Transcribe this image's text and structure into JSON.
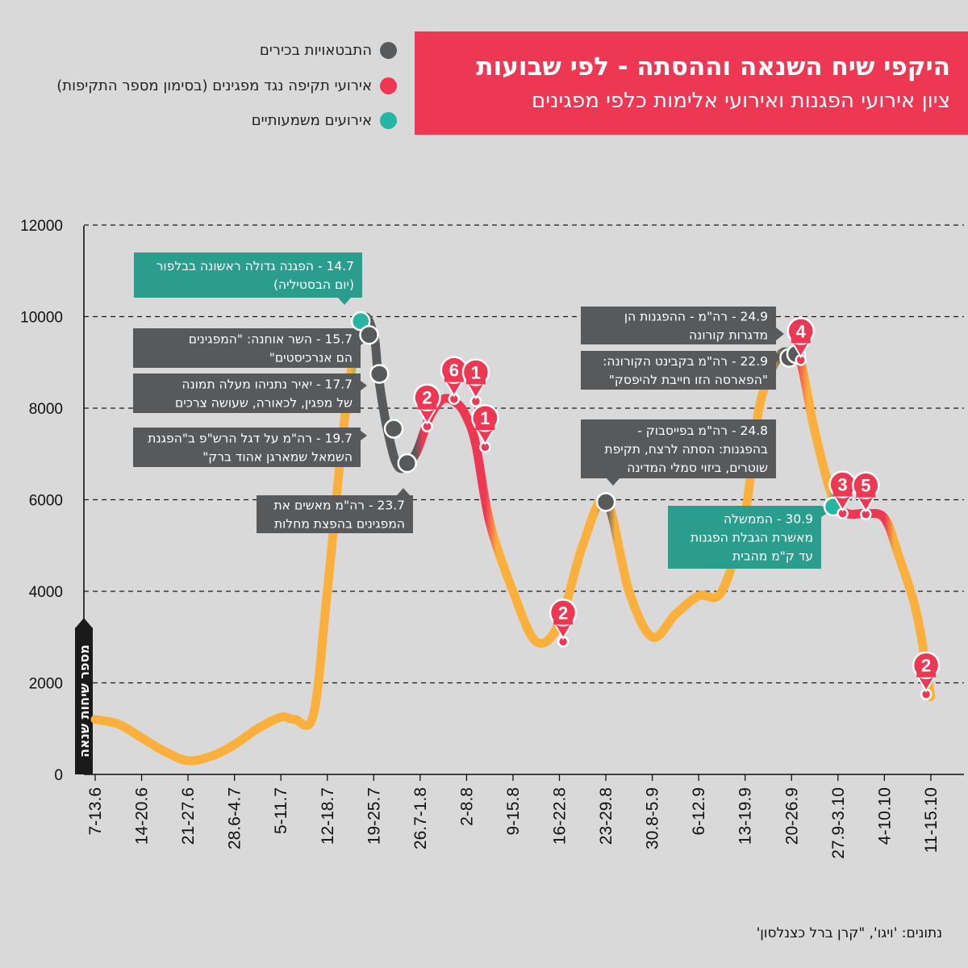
{
  "title": "היקפי שיח השנאה וההסתה - לפי שבועות",
  "subtitle": "ציון אירועי הפגנות ואירועי אלימות כלפי מפגינים",
  "legend": [
    {
      "label": "התבטאויות בכירים",
      "color": "#58595b"
    },
    {
      "label": "אירועי תקיפה נגד מפגינים (בסימון מספר התקיפות)",
      "color": "#ee3753"
    },
    {
      "label": "אירועים משמעותיים",
      "color": "#26b5a3"
    }
  ],
  "source": "נתונים: 'ויגו', \"קרן ברל כצנלסון'",
  "chart_data": {
    "type": "line",
    "ylabel": "מספר שיחות שנאה",
    "ylim": [
      0,
      12000
    ],
    "yticks": [
      "0",
      "2000",
      "4000",
      "6000",
      "8000",
      "10000",
      "12000"
    ],
    "categories": [
      "7-13.6",
      "14-20.6",
      "21-27.6",
      "28.6-4.7",
      "5-11.7",
      "12-18.7",
      "19-25.7",
      "26.7-1.8",
      "2-8.8",
      "9-15.8",
      "16-22.8",
      "23-29.8",
      "30.8-5.9",
      "6-12.9",
      "13-19.9",
      "20-26.9",
      "27.9-3.10",
      "4-10.10",
      "11-15.10"
    ],
    "series": [
      {
        "x": [
          0,
          0.5,
          1,
          1.5,
          2,
          2.5,
          3,
          3.5,
          4,
          4.3,
          4.7,
          5,
          5.4,
          5.75,
          6,
          6.1,
          6.3,
          6.55,
          6.9,
          7.2,
          7.5,
          7.8,
          8,
          8.2,
          8.5,
          9,
          9.5,
          10,
          10.5,
          11,
          11.5,
          12,
          12.5,
          13,
          13.5,
          14,
          14.3,
          14.7,
          15,
          15.2,
          15.5,
          15.9,
          16.2,
          16.6,
          17,
          17.3,
          17.7,
          18
        ],
        "y": [
          1200,
          1100,
          800,
          500,
          300,
          400,
          650,
          1000,
          1250,
          1200,
          1300,
          4000,
          8000,
          9900,
          9600,
          8700,
          7500,
          6700,
          7000,
          7800,
          8200,
          8100,
          7800,
          7200,
          5500,
          4000,
          2900,
          3300,
          5000,
          6000,
          4000,
          3000,
          3500,
          3900,
          4000,
          5700,
          8000,
          9100,
          9200,
          9000,
          7500,
          6000,
          5700,
          5700,
          5600,
          4800,
          3500,
          1700
        ]
      }
    ],
    "color_stops": [
      {
        "x": 5.5,
        "color": "#fbb03b"
      },
      {
        "x": 5.75,
        "color": "#26b5a3"
      },
      {
        "x": 5.85,
        "color": "#58595b"
      },
      {
        "x": 6.9,
        "color": "#58595b"
      },
      {
        "x": 7.05,
        "color": "#ee3753"
      },
      {
        "x": 8.4,
        "color": "#ee3753"
      },
      {
        "x": 8.65,
        "color": "#fbb03b"
      },
      {
        "x": 10.8,
        "color": "#fbb03b"
      },
      {
        "x": 11,
        "color": "#58595b"
      },
      {
        "x": 11.2,
        "color": "#fbb03b"
      },
      {
        "x": 14.55,
        "color": "#fbb03b"
      },
      {
        "x": 14.8,
        "color": "#58595b"
      },
      {
        "x": 15.1,
        "color": "#ee3753"
      },
      {
        "x": 15.35,
        "color": "#fbb03b"
      },
      {
        "x": 15.8,
        "color": "#fbb03b"
      },
      {
        "x": 15.9,
        "color": "#26b5a3"
      },
      {
        "x": 16,
        "color": "#ee3753"
      },
      {
        "x": 17,
        "color": "#ee3753"
      },
      {
        "x": 17.2,
        "color": "#fbb03b"
      }
    ],
    "dots": [
      {
        "x": 5.72,
        "y": 9900,
        "kind": "teal"
      },
      {
        "x": 5.9,
        "y": 9600,
        "kind": "gray"
      },
      {
        "x": 6.12,
        "y": 8750,
        "kind": "gray"
      },
      {
        "x": 6.43,
        "y": 7550,
        "kind": "gray"
      },
      {
        "x": 6.72,
        "y": 6800,
        "kind": "gray"
      },
      {
        "x": 11,
        "y": 5950,
        "kind": "gray"
      },
      {
        "x": 14.95,
        "y": 9100,
        "kind": "gray"
      },
      {
        "x": 15.1,
        "y": 9180,
        "kind": "gray"
      },
      {
        "x": 15.9,
        "y": 5850,
        "kind": "teal"
      }
    ],
    "pins": [
      {
        "x": 7.15,
        "y": 7600,
        "label": "2"
      },
      {
        "x": 7.73,
        "y": 8200,
        "label": "6"
      },
      {
        "x": 8.2,
        "y": 8150,
        "label": "1"
      },
      {
        "x": 8.4,
        "y": 7150,
        "label": "1"
      },
      {
        "x": 10.08,
        "y": 2900,
        "label": "2"
      },
      {
        "x": 15.2,
        "y": 9050,
        "label": "4"
      },
      {
        "x": 16.1,
        "y": 5700,
        "label": "3"
      },
      {
        "x": 16.6,
        "y": 5680,
        "label": "5"
      },
      {
        "x": 17.9,
        "y": 1750,
        "label": "2"
      }
    ],
    "annotations": [
      {
        "kind": "teal",
        "lines": [
          "14.7 - הפגנה גדולה ראשונה בבלפור",
          "(יום הבסטיליה)"
        ]
      },
      {
        "kind": "gray",
        "lines": [
          "15.7 - השר אוחנה: \"המפגינים",
          "הם אנרכיסטים\""
        ]
      },
      {
        "kind": "gray",
        "lines": [
          "17.7 - יאיר נתניהו מעלה תמונה",
          "של מפגין, לכאורה, שעושה צרכים"
        ]
      },
      {
        "kind": "gray",
        "lines": [
          "19.7 - רה\"מ על דגל הרש\"פ ב\"הפגנת",
          "השמאל שמארגן אהוד ברק\""
        ]
      },
      {
        "kind": "gray",
        "lines": [
          "23.7 - רה\"מ מאשים את",
          "המפגינים בהפצת מחלות"
        ]
      },
      {
        "kind": "gray",
        "lines": [
          "24.8 - רה\"מ בפייסבוק -",
          "בהפגנות: הסתה לרצח, תקיפת",
          "שוטרים, ביזוי סמלי המדינה"
        ]
      },
      {
        "kind": "gray",
        "lines": [
          "24.9 - רה\"מ - ההפגנות הן",
          "מדגרות קורונה"
        ]
      },
      {
        "kind": "gray",
        "lines": [
          "22.9 - רה\"מ בקבינט הקורונה:",
          "\"הפארסה הזו חייבת להיפסק\""
        ]
      },
      {
        "kind": "teal",
        "lines": [
          "30.9 - הממשלה",
          "מאשרת הגבלת הפגנות",
          "עד ק\"מ מהבית"
        ]
      }
    ]
  }
}
